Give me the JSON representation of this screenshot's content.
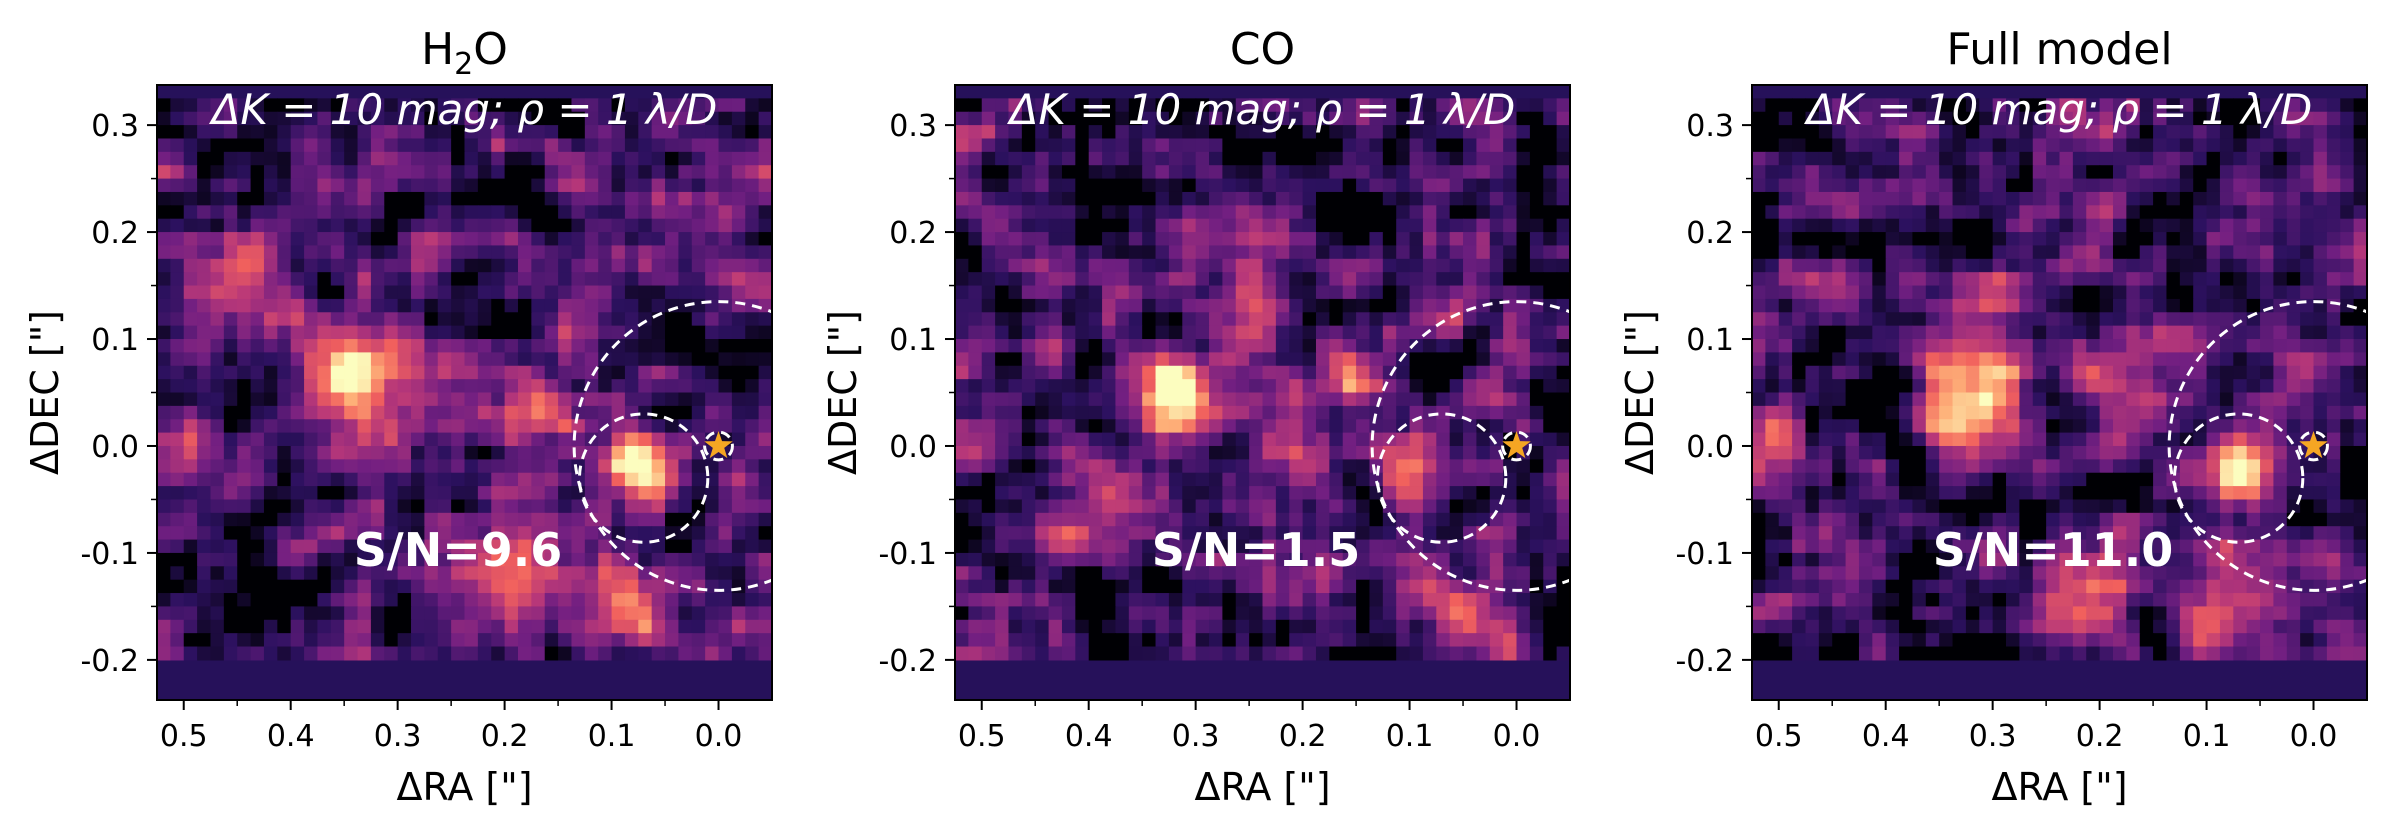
{
  "figure": {
    "colormap": [
      "#000004",
      "#2c115f",
      "#721f81",
      "#b73779",
      "#f1605d",
      "#feb078",
      "#fcfdbf"
    ],
    "star_color": "#f5a623",
    "circle_color": "#ffffff",
    "panel_background": "#26115a"
  },
  "chart_data": [
    {
      "type": "heatmap",
      "title_main": "H",
      "title_sub": "2",
      "title_rest": "O",
      "annotation": "ΔK = 10 mag; ρ = 1 λ/D",
      "snr_label": "S/N=9.6",
      "xlabel": "ΔRA [\"]",
      "ylabel": "ΔDEC [\"]",
      "xlim": [
        0.525,
        -0.05
      ],
      "ylim": [
        -0.2375,
        0.3375
      ],
      "xticks": [
        0.5,
        0.4,
        0.3,
        0.2,
        0.1,
        0.0
      ],
      "xtick_labels": [
        "0.5",
        "0.4",
        "0.3",
        "0.2",
        "0.1",
        "0.0"
      ],
      "yticks": [
        0.3,
        0.2,
        0.1,
        0.0,
        -0.1,
        -0.2
      ],
      "ytick_labels": [
        "0.3",
        "0.2",
        "0.1",
        "0.0",
        "-0.1",
        "-0.2"
      ],
      "star": {
        "x": 0.0,
        "y": 0.0
      },
      "circles": [
        {
          "cx": 0.0,
          "cy": 0.0,
          "r": 0.013
        },
        {
          "cx": 0.07,
          "cy": -0.03,
          "r": 0.06
        },
        {
          "cx": 0.0,
          "cy": 0.0,
          "r": 0.135
        }
      ],
      "blobs": [
        {
          "x": 0.07,
          "y": -0.02,
          "amp": 1.0,
          "s": 0.025
        },
        {
          "x": 0.33,
          "y": 0.06,
          "amp": 0.72,
          "s": 0.04
        },
        {
          "x": 0.5,
          "y": 0.0,
          "amp": 0.5,
          "s": 0.02
        },
        {
          "x": 0.17,
          "y": 0.04,
          "amp": 0.45,
          "s": 0.03
        },
        {
          "x": 0.08,
          "y": -0.15,
          "amp": 0.45,
          "s": 0.03
        },
        {
          "x": 0.2,
          "y": -0.12,
          "amp": 0.4,
          "s": 0.035
        },
        {
          "x": 0.45,
          "y": 0.15,
          "amp": 0.35,
          "s": 0.03
        }
      ],
      "seed": 11
    },
    {
      "type": "heatmap",
      "title_main": "CO",
      "title_sub": "",
      "title_rest": "",
      "annotation": "ΔK = 10 mag; ρ = 1 λ/D",
      "snr_label": "S/N=1.5",
      "xlabel": "ΔRA [\"]",
      "ylabel": "ΔDEC [\"]",
      "xlim": [
        0.525,
        -0.05
      ],
      "ylim": [
        -0.2375,
        0.3375
      ],
      "xticks": [
        0.5,
        0.4,
        0.3,
        0.2,
        0.1,
        0.0
      ],
      "xtick_labels": [
        "0.5",
        "0.4",
        "0.3",
        "0.2",
        "0.1",
        "0.0"
      ],
      "yticks": [
        0.3,
        0.2,
        0.1,
        0.0,
        -0.1,
        -0.2
      ],
      "ytick_labels": [
        "0.3",
        "0.2",
        "0.1",
        "0.0",
        "-0.1",
        "-0.2"
      ],
      "star": {
        "x": 0.0,
        "y": 0.0
      },
      "circles": [
        {
          "cx": 0.0,
          "cy": 0.0,
          "r": 0.013
        },
        {
          "cx": 0.07,
          "cy": -0.03,
          "r": 0.06
        },
        {
          "cx": 0.0,
          "cy": 0.0,
          "r": 0.135
        }
      ],
      "blobs": [
        {
          "x": 0.32,
          "y": 0.05,
          "amp": 1.0,
          "s": 0.025
        },
        {
          "x": 0.15,
          "y": 0.06,
          "amp": 0.6,
          "s": 0.018
        },
        {
          "x": 0.2,
          "y": 0.0,
          "amp": 0.45,
          "s": 0.03
        },
        {
          "x": 0.25,
          "y": 0.15,
          "amp": 0.4,
          "s": 0.03
        },
        {
          "x": 0.1,
          "y": -0.03,
          "amp": 0.45,
          "s": 0.02
        },
        {
          "x": 0.42,
          "y": -0.05,
          "amp": 0.4,
          "s": 0.035
        },
        {
          "x": 0.05,
          "y": -0.15,
          "amp": 0.4,
          "s": 0.03
        }
      ],
      "seed": 23
    },
    {
      "type": "heatmap",
      "title_main": "Full model",
      "title_sub": "",
      "title_rest": "",
      "annotation": "ΔK = 10 mag; ρ = 1 λ/D",
      "snr_label": "S/N=11.0",
      "xlabel": "ΔRA [\"]",
      "ylabel": "ΔDEC [\"]",
      "xlim": [
        0.525,
        -0.05
      ],
      "ylim": [
        -0.2375,
        0.3375
      ],
      "xticks": [
        0.5,
        0.4,
        0.3,
        0.2,
        0.1,
        0.0
      ],
      "xtick_labels": [
        "0.5",
        "0.4",
        "0.3",
        "0.2",
        "0.1",
        "0.0"
      ],
      "yticks": [
        0.3,
        0.2,
        0.1,
        0.0,
        -0.1,
        -0.2
      ],
      "ytick_labels": [
        "0.3",
        "0.2",
        "0.1",
        "0.0",
        "-0.1",
        "-0.2"
      ],
      "star": {
        "x": 0.0,
        "y": 0.0
      },
      "circles": [
        {
          "cx": 0.0,
          "cy": 0.0,
          "r": 0.013
        },
        {
          "cx": 0.07,
          "cy": -0.03,
          "r": 0.06
        },
        {
          "cx": 0.0,
          "cy": 0.0,
          "r": 0.135
        }
      ],
      "blobs": [
        {
          "x": 0.07,
          "y": -0.02,
          "amp": 1.0,
          "s": 0.025
        },
        {
          "x": 0.32,
          "y": 0.05,
          "amp": 0.8,
          "s": 0.035
        },
        {
          "x": 0.3,
          "y": 0.15,
          "amp": 0.45,
          "s": 0.015
        },
        {
          "x": 0.5,
          "y": 0.0,
          "amp": 0.45,
          "s": 0.02
        },
        {
          "x": 0.08,
          "y": -0.14,
          "amp": 0.5,
          "s": 0.03
        },
        {
          "x": 0.18,
          "y": 0.05,
          "amp": 0.4,
          "s": 0.03
        },
        {
          "x": 0.22,
          "y": -0.12,
          "amp": 0.35,
          "s": 0.035
        }
      ],
      "seed": 37
    }
  ]
}
